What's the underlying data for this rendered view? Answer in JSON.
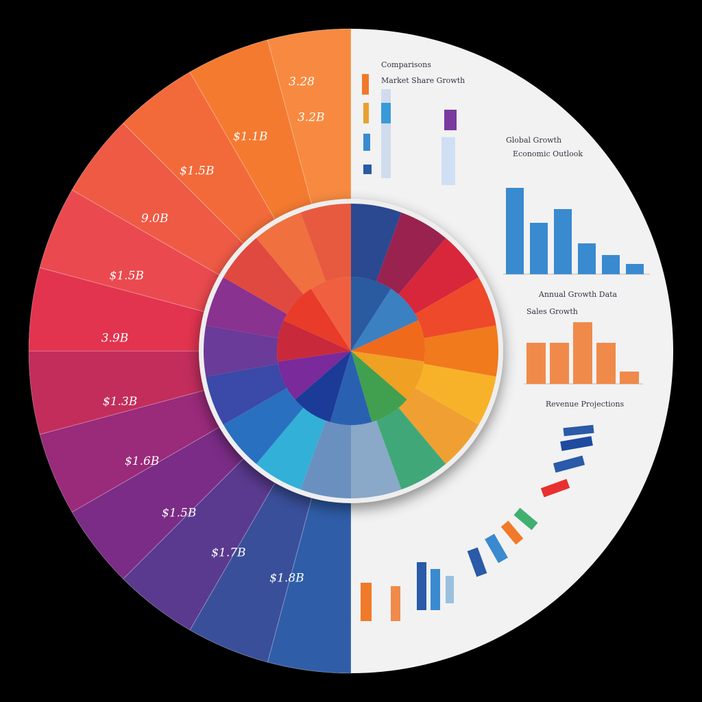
{
  "wedge_labels": [
    "$1.8B",
    "$1.7B",
    "$1.5B",
    "$1.6B",
    "$1.3B",
    "3.9B",
    "$1.5B",
    "9.0B",
    "$1.5B",
    "$1.1B",
    "3.2B"
  ],
  "top_label": "3.28",
  "panel": {
    "title": "Comparisons",
    "subtitle": "Market Share Growth"
  },
  "bar_charts": [
    {
      "type": "bar",
      "title": "Global Growth",
      "subtitle": "Economic Outlook",
      "caption": "Annual Growth Data",
      "color": "#3a8ad0",
      "values": [
        126,
        75,
        95,
        45,
        28,
        15
      ]
    },
    {
      "type": "bar",
      "title": "Sales Growth",
      "caption": "Revenue Projections",
      "color": "#f08a4a",
      "values": [
        60,
        60,
        90,
        60,
        18
      ]
    }
  ]
}
